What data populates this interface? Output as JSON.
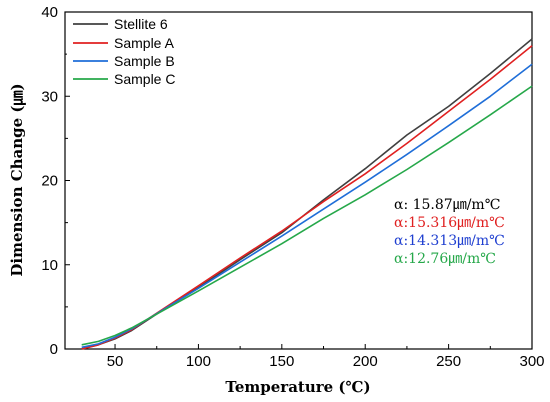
{
  "chart_data": {
    "type": "line",
    "title": "",
    "xlabel": "Temperature (℃)",
    "ylabel": "Dimension Change (㎛)",
    "xlim": [
      20,
      300
    ],
    "ylim": [
      0,
      40
    ],
    "xticks": [
      50,
      100,
      150,
      200,
      250,
      300
    ],
    "yticks": [
      0,
      10,
      20,
      30,
      40
    ],
    "grid": false,
    "legend_position": "top-left",
    "series": [
      {
        "name": "Stellite 6",
        "color": "#404040",
        "x": [
          30,
          40,
          50,
          60,
          70,
          80,
          100,
          125,
          150,
          175,
          200,
          225,
          250,
          275,
          300
        ],
        "y": [
          0.0,
          0.5,
          1.2,
          2.2,
          3.5,
          4.8,
          7.3,
          10.6,
          13.8,
          17.7,
          21.4,
          25.4,
          28.8,
          32.7,
          36.8
        ]
      },
      {
        "name": "Sample A",
        "color": "#e02020",
        "x": [
          30,
          40,
          50,
          60,
          70,
          80,
          100,
          125,
          150,
          175,
          200,
          225,
          250,
          275,
          300
        ],
        "y": [
          0.0,
          0.5,
          1.3,
          2.3,
          3.6,
          4.9,
          7.5,
          10.8,
          14.0,
          17.5,
          20.8,
          24.4,
          28.2,
          32.0,
          36.0
        ]
      },
      {
        "name": "Sample B",
        "color": "#1f6ed8",
        "x": [
          30,
          40,
          50,
          60,
          70,
          80,
          100,
          125,
          150,
          175,
          200,
          225,
          250,
          275,
          300
        ],
        "y": [
          0.2,
          0.6,
          1.4,
          2.4,
          3.6,
          4.8,
          7.2,
          10.3,
          13.4,
          16.6,
          19.8,
          23.1,
          26.5,
          30.0,
          33.8
        ]
      },
      {
        "name": "Sample C",
        "color": "#26a84a",
        "x": [
          30,
          40,
          50,
          60,
          70,
          80,
          100,
          125,
          150,
          175,
          200,
          225,
          250,
          275,
          300
        ],
        "y": [
          0.5,
          0.9,
          1.6,
          2.5,
          3.6,
          4.7,
          6.9,
          9.7,
          12.5,
          15.5,
          18.3,
          21.3,
          24.5,
          27.8,
          31.2
        ]
      }
    ],
    "annotations": [
      {
        "text": "α: 15.87㎛/m℃",
        "color": "#000000"
      },
      {
        "text": "α:15.316㎛/m℃",
        "color": "#e02020"
      },
      {
        "text": "α:14.313㎛/m℃",
        "color": "#1f3fd0"
      },
      {
        "text": "α:12.76㎛/m℃",
        "color": "#26a84a"
      }
    ]
  }
}
